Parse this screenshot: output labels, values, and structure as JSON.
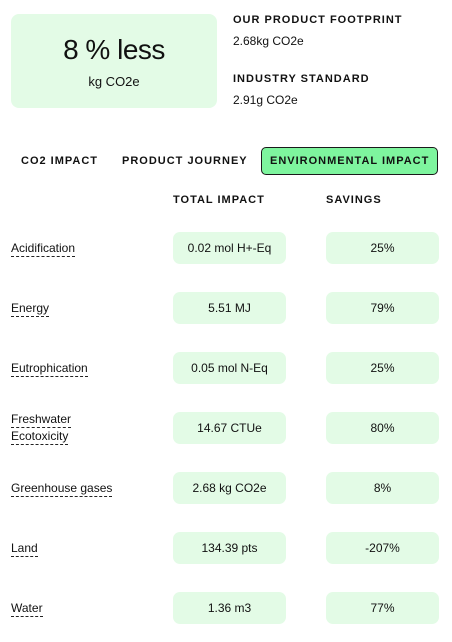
{
  "summary": {
    "value": "8 % less",
    "unit": "kg CO2e"
  },
  "footprint": {
    "product_label": "OUR PRODUCT FOOTPRINT",
    "product_value": "2.68kg CO2e",
    "industry_label": "INDUSTRY STANDARD",
    "industry_value": "2.91g CO2e"
  },
  "tabs": [
    {
      "label": "CO2 IMPACT",
      "active": false
    },
    {
      "label": "PRODUCT JOURNEY",
      "active": false
    },
    {
      "label": "ENVIRONMENTAL IMPACT",
      "active": true
    }
  ],
  "table": {
    "headers": {
      "impact": "TOTAL IMPACT",
      "savings": "SAVINGS"
    },
    "rows": [
      {
        "name": "Acidification",
        "impact": "0.02 mol H+-Eq",
        "savings": "25%"
      },
      {
        "name": "Energy",
        "impact": "5.51 MJ",
        "savings": "79%"
      },
      {
        "name": "Eutrophication",
        "impact": "0.05 mol N-Eq",
        "savings": "25%"
      },
      {
        "name": "Freshwater Ecotoxicity",
        "name_lines": [
          "Freshwater",
          "Ecotoxicity"
        ],
        "impact": "14.67 CTUe",
        "savings": "80%"
      },
      {
        "name": "Greenhouse gases",
        "impact": "2.68 kg CO2e",
        "savings": "8%"
      },
      {
        "name": "Land",
        "impact": "134.39 pts",
        "savings": "-207%"
      },
      {
        "name": "Water",
        "impact": "1.36 m3",
        "savings": "77%"
      }
    ]
  }
}
